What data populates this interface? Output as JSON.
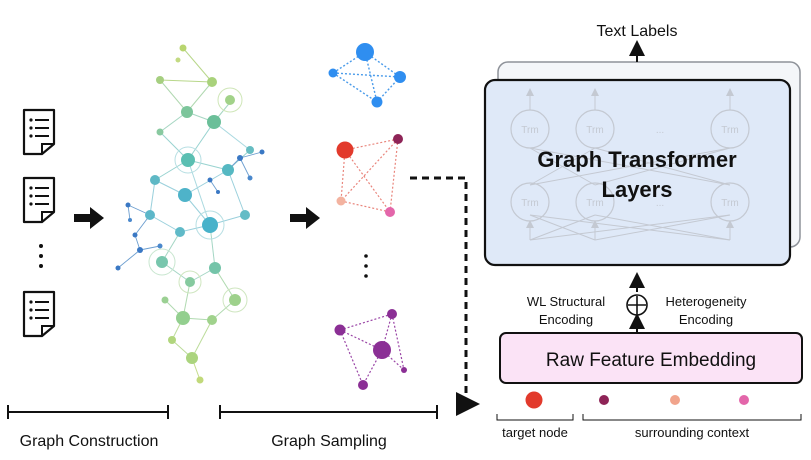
{
  "labels": {
    "text_labels": "Text Labels",
    "gt_line1": "Graph Transformer",
    "gt_line2": "Layers",
    "trm": "Trm",
    "trm_dots": "...",
    "wl_line1": "WL Structural",
    "wl_line2": "Encoding",
    "het_line1": "Heterogeneity",
    "het_line2": "Encoding",
    "raw_feature": "Raw Feature Embedding",
    "target_node": "target node",
    "surrounding_context": "surrounding context",
    "graph_construction": "Graph Construction",
    "graph_sampling": "Graph Sampling"
  },
  "colors": {
    "transformer_fill": "#dfe9f8",
    "raw_fill": "#fbe3f6",
    "blue_node": "#2f8ef0",
    "red_node": "#e23a2c",
    "purple_node": "#8b2f95",
    "dark_red_node": "#8e2457",
    "peach_node": "#f1a48c",
    "pink_node": "#e366aa"
  },
  "icons": [
    "document-icon",
    "arrow-right-icon",
    "plus-circle-icon"
  ]
}
